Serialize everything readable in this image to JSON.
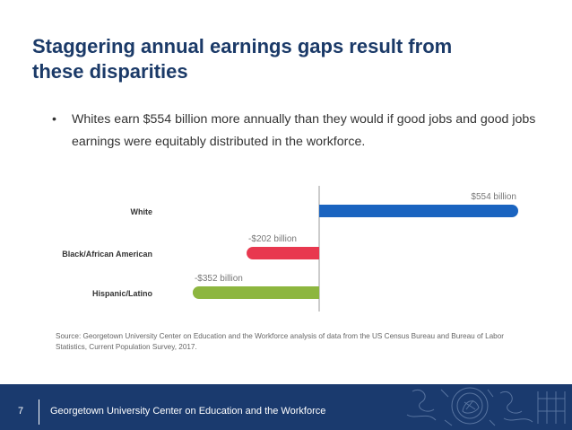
{
  "slide": {
    "title_line1": "Staggering annual earnings gaps result from",
    "title_line2": "these disparities",
    "bullet_symbol": "•",
    "bullet": "Whites earn $554 billion more annually than they would if good jobs and good jobs earnings were equitably distributed in the workforce.",
    "source": "Source: Georgetown University Center on Education and the Workforce analysis of data from the US Census Bureau and Bureau of Labor Statistics, Current Population Survey, 2017.",
    "page_number": "7",
    "footer_org": "Georgetown University Center on Education and the Workforce"
  },
  "chart_data": {
    "type": "bar",
    "orientation": "horizontal",
    "categories": [
      "White",
      "Black/African American",
      "Hispanic/Latino"
    ],
    "values": [
      554,
      -202,
      -352
    ],
    "value_labels": [
      "$554 billion",
      "-$202 billion",
      "-$352 billion"
    ],
    "unit": "billion",
    "bar_colors": [
      "#1a64c0",
      "#e8384f",
      "#8db63f"
    ],
    "xlim": [
      -352,
      554
    ],
    "grid": false,
    "legend": "none"
  },
  "colors": {
    "title": "#1b3a68",
    "footer": "#1a3a6e",
    "axis": "#999999"
  }
}
